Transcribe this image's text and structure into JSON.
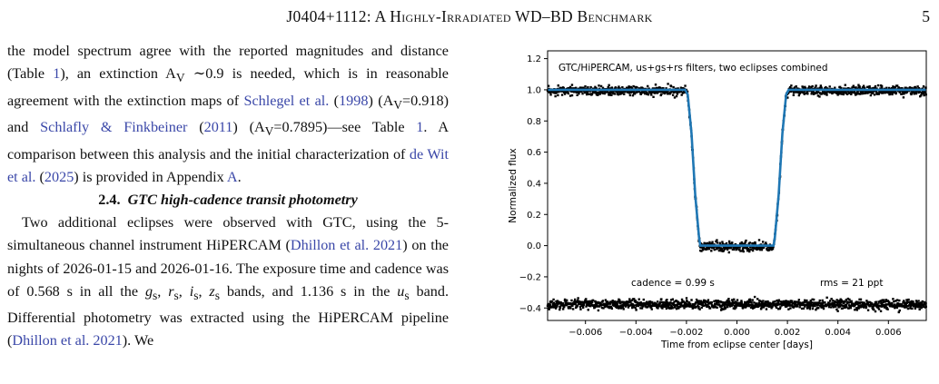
{
  "header": {
    "title": "J0404+1112: A Highly-Irradiated WD–BD Benchmark",
    "page_number": "5"
  },
  "left_column": {
    "para1": {
      "t1": "the model spectrum agree with the reported magnitudes and distance (Table ",
      "ref1": "1",
      "t2": "), an extinction A",
      "sub1": "V",
      "t3": " ∼0.9 is needed, which is in reasonable agreement with the extinction maps of ",
      "cite1": "Schlegel et al.",
      "t4": " (",
      "cite1_year": "1998",
      "t5": ") (A",
      "sub2": "V",
      "t6": "=0.918) and ",
      "cite2": "Schlafly & Finkbeiner",
      "t7": " (",
      "cite2_year": "2011",
      "t8": ") (A",
      "sub3": "V",
      "t9": "=0.7895)—see Table ",
      "ref2": "1",
      "t10": ". A comparison between this analysis and the initial characterization of ",
      "cite3": "de Wit et al.",
      "t11": " (",
      "cite3_year": "2025",
      "t12": ") is provided in Appendix ",
      "ref3": "A",
      "t13": "."
    },
    "section": {
      "number": "2.4.",
      "title": "GTC high-cadence transit photometry"
    },
    "para2": {
      "t1": "Two additional eclipses were observed with GTC, using the 5-simultaneous channel instrument HiPERCAM (",
      "cite1": "Dhillon et al. 2021",
      "t2": ") on the nights of 2026-01-15 and 2026-01-16. The exposure time and cadence was of 0.568 s in all the ",
      "g": "g",
      "g_s": "s",
      "c1": ", ",
      "r": "r",
      "r_s": "s",
      "c2": ", ",
      "i": "i",
      "i_s": "s",
      "c3": ", ",
      "z": "z",
      "z_s": "s",
      "t3": " bands, and 1.136 s in the ",
      "u": "u",
      "u_s": "s",
      "t4": " band. Differential photometry was extracted using the HiPERCAM pipeline (",
      "cite2": "Dhillon et al. 2021",
      "t5": "). We"
    }
  },
  "chart_data": {
    "type": "scatter",
    "title": "",
    "annotation_title": "GTC/HiPERCAM, us+gs+rs filters, two eclipses combined",
    "annotation_cadence": "cadence = 0.99 s",
    "annotation_rms": "rms = 21 ppt",
    "xlabel": "Time from eclipse center [days]",
    "ylabel": "Normalized flux",
    "xlim": [
      -0.0075,
      0.0075
    ],
    "ylim": [
      -0.48,
      1.25
    ],
    "xticks": [
      -0.006,
      -0.004,
      -0.002,
      0.0,
      0.002,
      0.004,
      0.006
    ],
    "xtick_labels": [
      "−0.006",
      "−0.004",
      "−0.002",
      "0.000",
      "0.002",
      "0.004",
      "0.006"
    ],
    "yticks": [
      -0.4,
      -0.2,
      0.0,
      0.2,
      0.4,
      0.6,
      0.8,
      1.0,
      1.2
    ],
    "ytick_labels": [
      "−0.4",
      "−0.2",
      "0.0",
      "0.2",
      "0.4",
      "0.6",
      "0.8",
      "1.0",
      "1.2"
    ],
    "model": {
      "x": [
        -0.0075,
        -0.00205,
        -0.00195,
        -0.0018,
        -0.00165,
        -0.0015,
        -0.00145,
        0.00145,
        0.0015,
        0.00165,
        0.0018,
        0.00195,
        0.00205,
        0.0075
      ],
      "y": [
        1.0,
        1.0,
        0.97,
        0.72,
        0.32,
        0.05,
        0.0,
        0.0,
        0.05,
        0.32,
        0.72,
        0.97,
        1.0,
        1.0
      ]
    },
    "data_scatter": 0.021,
    "residual_offset": -0.37,
    "model_color": "#1f77b4",
    "point_color": "#000000"
  }
}
